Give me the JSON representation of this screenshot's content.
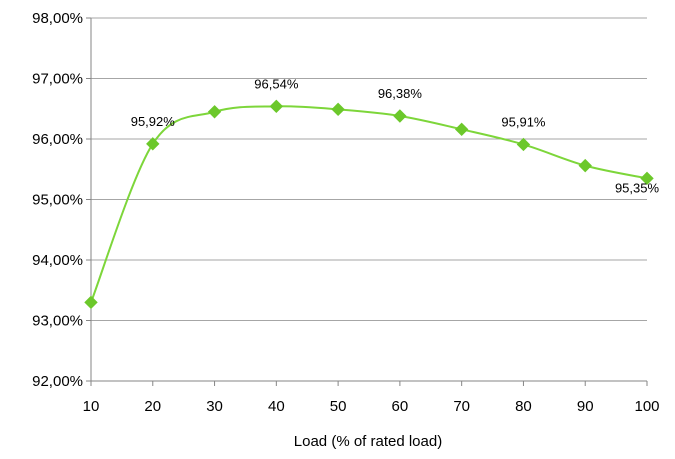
{
  "chart_data": {
    "type": "line",
    "title": "",
    "xlabel": "Load (% of rated load)",
    "ylabel": "",
    "x": [
      10,
      20,
      30,
      40,
      50,
      60,
      70,
      80,
      90,
      100
    ],
    "series": [
      {
        "values": [
          93.3,
          95.92,
          96.45,
          96.54,
          96.49,
          96.38,
          96.16,
          95.91,
          95.56,
          95.35
        ]
      }
    ],
    "xlim": [
      10,
      100
    ],
    "ylim": [
      92,
      98
    ],
    "x_ticks": [
      "10",
      "20",
      "30",
      "40",
      "50",
      "60",
      "70",
      "80",
      "90",
      "100"
    ],
    "y_ticks": [
      {
        "value": 92,
        "label": "92,00%"
      },
      {
        "value": 93,
        "label": "93,00%"
      },
      {
        "value": 94,
        "label": "94,00%"
      },
      {
        "value": 95,
        "label": "95,00%"
      },
      {
        "value": 96,
        "label": "96,00%"
      },
      {
        "value": 97,
        "label": "97,00%"
      },
      {
        "value": 98,
        "label": "98,00%"
      }
    ],
    "data_labels": [
      {
        "index": 1,
        "text": "95,92%"
      },
      {
        "index": 3,
        "text": "96,54%"
      },
      {
        "index": 5,
        "text": "96,38%"
      },
      {
        "index": 7,
        "text": "95,91%"
      },
      {
        "index": 9,
        "text": "95,35%"
      }
    ],
    "grid": true,
    "legend": "none",
    "line_color": "#7DD63A",
    "marker_color": "#6CC82B",
    "grid_color": "#A6A6A6"
  }
}
